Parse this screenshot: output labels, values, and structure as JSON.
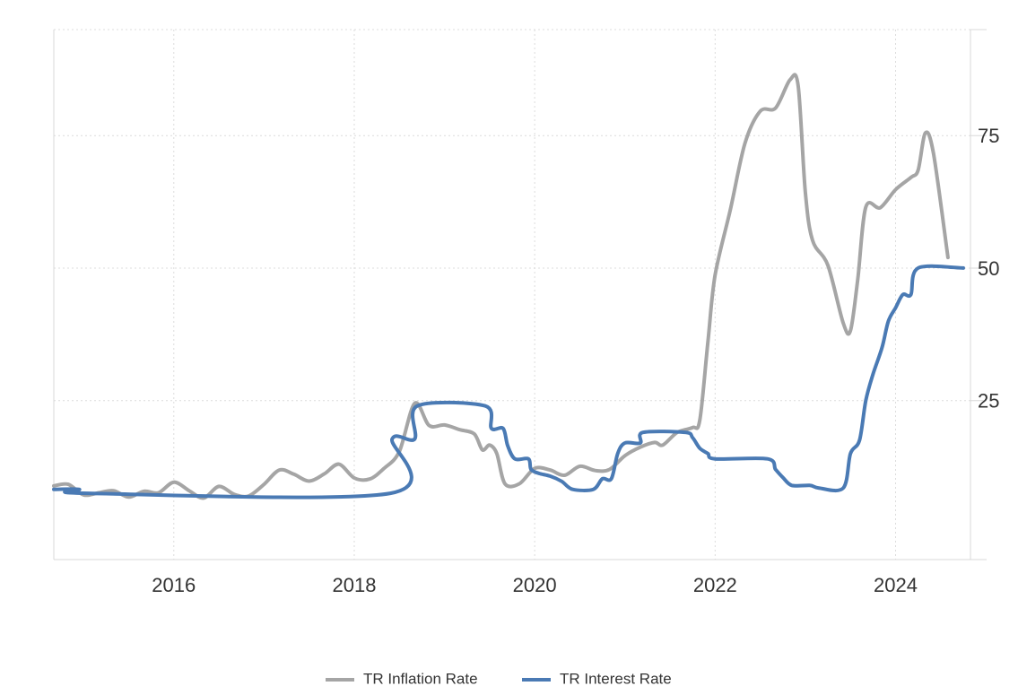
{
  "chart_data": {
    "type": "line",
    "xlim": [
      2014.67,
      2024.83
    ],
    "ylim": [
      -5,
      95
    ],
    "y_ticks": [
      25,
      50,
      75
    ],
    "y_tick_labels": [
      "25",
      "50",
      "75"
    ],
    "x_ticks": [
      2016,
      2018,
      2020,
      2022,
      2024
    ],
    "x_tick_labels": [
      "2016",
      "2018",
      "2020",
      "2022",
      "2024"
    ],
    "y_axis_position": "right",
    "grid": true,
    "legend_position": "bottom-center",
    "series": [
      {
        "name": "TR Inflation Rate",
        "color": "#a5a5a5",
        "points": [
          [
            2014.67,
            8.9
          ],
          [
            2014.83,
            9.2
          ],
          [
            2015.0,
            7.2
          ],
          [
            2015.17,
            7.6
          ],
          [
            2015.33,
            8.0
          ],
          [
            2015.5,
            6.8
          ],
          [
            2015.67,
            7.9
          ],
          [
            2015.83,
            7.6
          ],
          [
            2016.0,
            9.6
          ],
          [
            2016.17,
            8.0
          ],
          [
            2016.33,
            6.6
          ],
          [
            2016.5,
            8.8
          ],
          [
            2016.67,
            7.3
          ],
          [
            2016.83,
            7.0
          ],
          [
            2017.0,
            9.2
          ],
          [
            2017.17,
            11.9
          ],
          [
            2017.33,
            11.1
          ],
          [
            2017.5,
            9.8
          ],
          [
            2017.67,
            11.2
          ],
          [
            2017.83,
            13.0
          ],
          [
            2018.0,
            10.4
          ],
          [
            2018.17,
            10.2
          ],
          [
            2018.33,
            12.2
          ],
          [
            2018.5,
            15.4
          ],
          [
            2018.67,
            24.5
          ],
          [
            2018.83,
            20.3
          ],
          [
            2019.0,
            20.4
          ],
          [
            2019.17,
            19.5
          ],
          [
            2019.33,
            18.7
          ],
          [
            2019.42,
            15.7
          ],
          [
            2019.5,
            16.6
          ],
          [
            2019.58,
            15.0
          ],
          [
            2019.67,
            9.3
          ],
          [
            2019.83,
            9.3
          ],
          [
            2020.0,
            12.2
          ],
          [
            2020.17,
            11.9
          ],
          [
            2020.33,
            10.9
          ],
          [
            2020.5,
            12.6
          ],
          [
            2020.67,
            11.8
          ],
          [
            2020.83,
            12.0
          ],
          [
            2021.0,
            14.6
          ],
          [
            2021.17,
            16.2
          ],
          [
            2021.33,
            17.1
          ],
          [
            2021.42,
            16.6
          ],
          [
            2021.58,
            19.0
          ],
          [
            2021.75,
            19.9
          ],
          [
            2021.83,
            21.3
          ],
          [
            2021.92,
            36.1
          ],
          [
            2022.0,
            48.7
          ],
          [
            2022.17,
            61.1
          ],
          [
            2022.33,
            73.5
          ],
          [
            2022.5,
            79.6
          ],
          [
            2022.67,
            80.2
          ],
          [
            2022.83,
            85.5
          ],
          [
            2022.92,
            84.4
          ],
          [
            2023.0,
            64.3
          ],
          [
            2023.08,
            55.2
          ],
          [
            2023.25,
            50.5
          ],
          [
            2023.42,
            39.6
          ],
          [
            2023.5,
            38.2
          ],
          [
            2023.58,
            47.8
          ],
          [
            2023.67,
            61.5
          ],
          [
            2023.83,
            61.4
          ],
          [
            2024.0,
            64.8
          ],
          [
            2024.17,
            67.1
          ],
          [
            2024.25,
            68.5
          ],
          [
            2024.33,
            75.5
          ],
          [
            2024.42,
            71.6
          ],
          [
            2024.58,
            52.0
          ]
        ]
      },
      {
        "name": "TR Interest Rate",
        "color": "#4a7ab4",
        "points": [
          [
            2014.67,
            8.25
          ],
          [
            2014.95,
            8.25
          ],
          [
            2015.05,
            7.5
          ],
          [
            2018.4,
            7.5
          ],
          [
            2018.42,
            17.75
          ],
          [
            2018.67,
            17.75
          ],
          [
            2018.7,
            24.0
          ],
          [
            2019.45,
            24.0
          ],
          [
            2019.52,
            19.75
          ],
          [
            2019.65,
            19.75
          ],
          [
            2019.7,
            16.5
          ],
          [
            2019.78,
            14.0
          ],
          [
            2019.93,
            14.0
          ],
          [
            2019.96,
            12.0
          ],
          [
            2020.05,
            11.25
          ],
          [
            2020.17,
            10.75
          ],
          [
            2020.3,
            9.75
          ],
          [
            2020.42,
            8.25
          ],
          [
            2020.65,
            8.25
          ],
          [
            2020.75,
            10.25
          ],
          [
            2020.85,
            10.25
          ],
          [
            2020.92,
            15.0
          ],
          [
            2021.0,
            17.0
          ],
          [
            2021.17,
            17.0
          ],
          [
            2021.2,
            19.0
          ],
          [
            2021.67,
            19.0
          ],
          [
            2021.75,
            18.0
          ],
          [
            2021.83,
            16.0
          ],
          [
            2021.92,
            15.0
          ],
          [
            2022.0,
            14.0
          ],
          [
            2022.58,
            14.0
          ],
          [
            2022.67,
            12.0
          ],
          [
            2022.75,
            10.5
          ],
          [
            2022.85,
            9.0
          ],
          [
            2023.05,
            9.0
          ],
          [
            2023.15,
            8.5
          ],
          [
            2023.42,
            8.5
          ],
          [
            2023.5,
            15.0
          ],
          [
            2023.6,
            17.5
          ],
          [
            2023.67,
            25.0
          ],
          [
            2023.75,
            30.0
          ],
          [
            2023.85,
            35.0
          ],
          [
            2023.92,
            40.0
          ],
          [
            2024.0,
            42.5
          ],
          [
            2024.08,
            45.0
          ],
          [
            2024.17,
            45.0
          ],
          [
            2024.25,
            50.0
          ],
          [
            2024.75,
            50.0
          ]
        ]
      }
    ]
  }
}
